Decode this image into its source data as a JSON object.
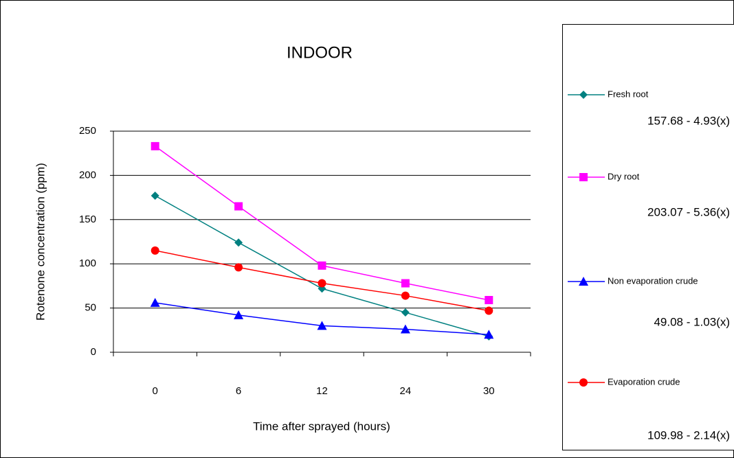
{
  "chart_data": {
    "type": "line",
    "title": "INDOOR",
    "x_label": "Time  after sprayed (hours)",
    "y_label": "Rotenone concentration (ppm)",
    "categories": [
      "0",
      "6",
      "12",
      "24",
      "30"
    ],
    "ylim": [
      0,
      250
    ],
    "yticks": [
      0,
      50,
      100,
      150,
      200,
      250
    ],
    "grid": true,
    "series": [
      {
        "name": "Fresh root",
        "color": "#008080",
        "marker": "diamond",
        "equation": "157.68 - 4.93(x)",
        "values": [
          177,
          124,
          72,
          45,
          18
        ]
      },
      {
        "name": "Dry root",
        "color": "#ff00ff",
        "marker": "square",
        "equation": "203.07 - 5.36(x)",
        "values": [
          233,
          165,
          98,
          78,
          59
        ]
      },
      {
        "name": "Non evaporation crude",
        "color": "#0000ff",
        "marker": "triangle",
        "equation": "49.08 - 1.03(x)",
        "values": [
          56,
          42,
          30,
          26,
          20
        ]
      },
      {
        "name": "Evaporation crude",
        "color": "#ff0000",
        "marker": "circle",
        "equation": "109.98 - 2.14(x)",
        "values": [
          115,
          96,
          78,
          64,
          47
        ]
      }
    ]
  }
}
